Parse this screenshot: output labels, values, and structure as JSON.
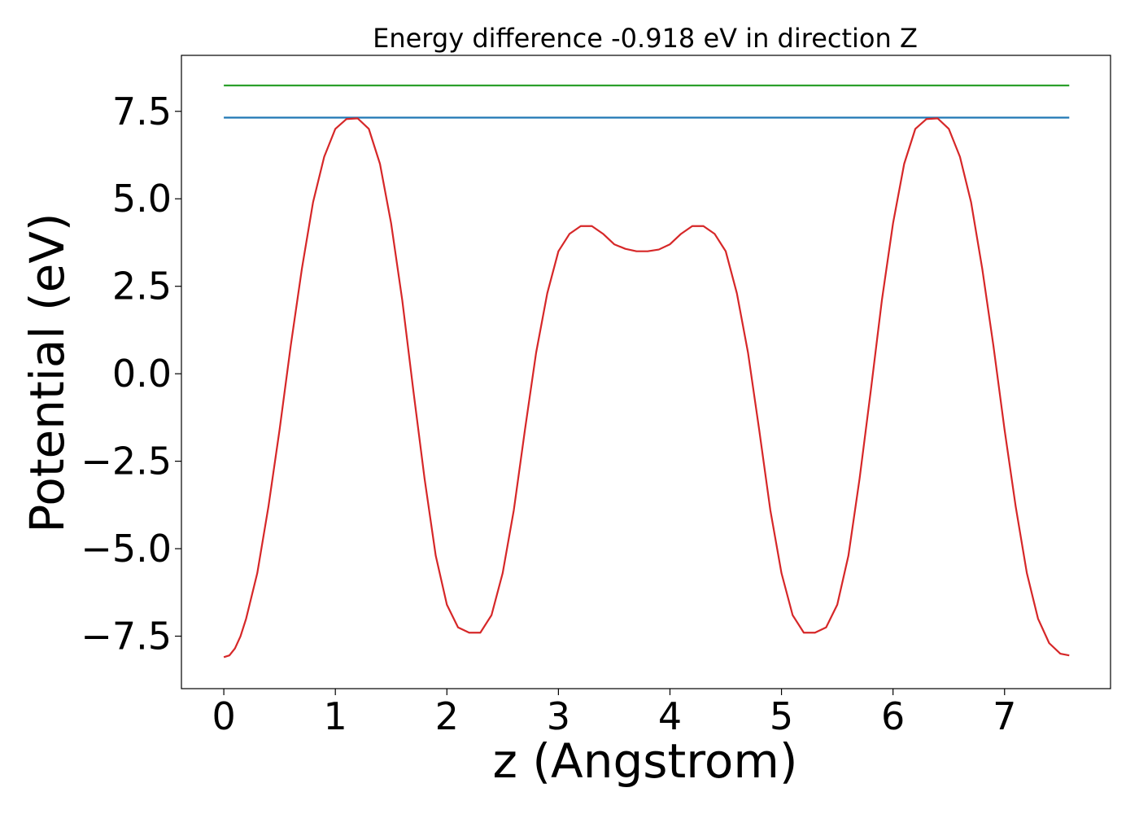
{
  "chart_data": {
    "type": "line",
    "title": "Energy difference -0.918 eV in direction Z",
    "xlabel": "z (Angstrom)",
    "ylabel": "Potential (eV)",
    "xlim": [
      -0.38,
      7.95
    ],
    "ylim": [
      -9.0,
      9.1
    ],
    "x_ticks": [
      0,
      1,
      2,
      3,
      4,
      5,
      6,
      7
    ],
    "x_tick_labels": [
      "0",
      "1",
      "2",
      "3",
      "4",
      "5",
      "6",
      "7"
    ],
    "y_ticks": [
      -7.5,
      -5.0,
      -2.5,
      0.0,
      2.5,
      5.0,
      7.5
    ],
    "y_tick_labels": [
      "−7.5",
      "−5.0",
      "−2.5",
      "0.0",
      "2.5",
      "5.0",
      "7.5"
    ],
    "grid": false,
    "series": [
      {
        "color": "#d62728",
        "x": [
          0.0,
          0.05,
          0.1,
          0.15,
          0.2,
          0.3,
          0.4,
          0.5,
          0.6,
          0.7,
          0.8,
          0.9,
          1.0,
          1.1,
          1.2,
          1.3,
          1.4,
          1.5,
          1.6,
          1.7,
          1.8,
          1.9,
          2.0,
          2.1,
          2.2,
          2.3,
          2.4,
          2.5,
          2.6,
          2.7,
          2.8,
          2.9,
          3.0,
          3.1,
          3.2,
          3.3,
          3.4,
          3.5,
          3.6,
          3.7,
          3.8,
          3.9,
          4.0,
          4.1,
          4.2,
          4.3,
          4.4,
          4.5,
          4.6,
          4.7,
          4.8,
          4.9,
          5.0,
          5.1,
          5.2,
          5.3,
          5.4,
          5.5,
          5.6,
          5.7,
          5.8,
          5.9,
          6.0,
          6.1,
          6.2,
          6.3,
          6.4,
          6.5,
          6.6,
          6.7,
          6.8,
          6.9,
          7.0,
          7.1,
          7.2,
          7.3,
          7.4,
          7.5,
          7.58
        ],
        "y": [
          -8.1,
          -8.05,
          -7.85,
          -7.5,
          -7.0,
          -5.7,
          -3.8,
          -1.6,
          0.8,
          3.0,
          4.9,
          6.2,
          7.0,
          7.28,
          7.3,
          7.0,
          6.0,
          4.3,
          2.1,
          -0.5,
          -3.0,
          -5.2,
          -6.6,
          -7.25,
          -7.4,
          -7.4,
          -6.9,
          -5.7,
          -3.9,
          -1.6,
          0.6,
          2.3,
          3.5,
          4.0,
          4.22,
          4.22,
          4.0,
          3.7,
          3.57,
          3.5,
          3.5,
          3.55,
          3.7,
          4.0,
          4.22,
          4.22,
          4.0,
          3.5,
          2.3,
          0.6,
          -1.6,
          -3.9,
          -5.7,
          -6.9,
          -7.4,
          -7.4,
          -7.25,
          -6.6,
          -5.2,
          -3.0,
          -0.5,
          2.1,
          4.3,
          6.0,
          7.0,
          7.28,
          7.3,
          7.0,
          6.2,
          4.9,
          3.0,
          0.8,
          -1.6,
          -3.8,
          -5.7,
          -7.0,
          -7.7,
          -8.0,
          -8.05
        ]
      },
      {
        "color": "#1f77b4",
        "x": [
          0.0,
          7.58
        ],
        "y": [
          7.32,
          7.32
        ]
      },
      {
        "color": "#2ca02c",
        "x": [
          0.0,
          7.58
        ],
        "y": [
          8.24,
          8.24
        ]
      }
    ]
  }
}
